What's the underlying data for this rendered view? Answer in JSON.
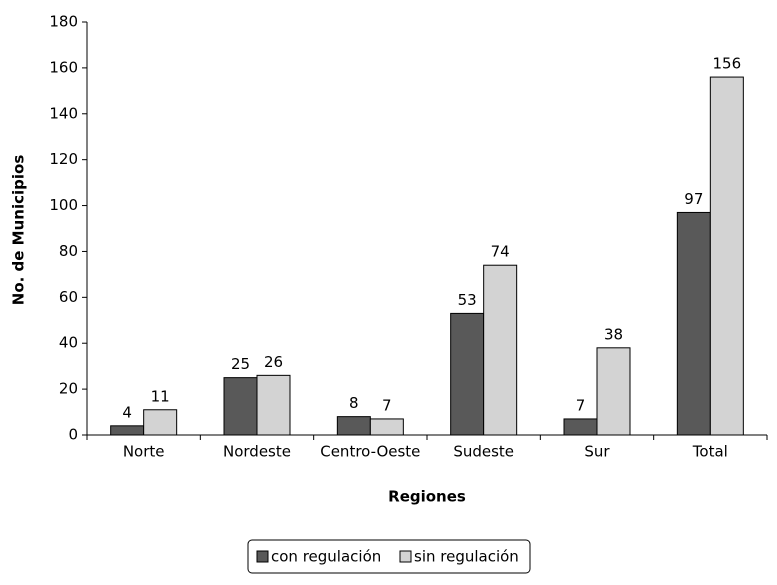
{
  "chart_data": {
    "type": "bar",
    "x_label": "Regiones",
    "y_label": "No. de Municipios",
    "categories": [
      "Norte",
      "Nordeste",
      "Centro-Oeste",
      "Sudeste",
      "Sur",
      "Total"
    ],
    "series": [
      {
        "name": "con regulación",
        "color": "#595959",
        "values": [
          4,
          25,
          8,
          53,
          7,
          97
        ]
      },
      {
        "name": "sin regulación",
        "color": "#d3d3d3",
        "values": [
          11,
          26,
          7,
          74,
          38,
          156
        ]
      }
    ],
    "ylim": [
      0,
      180
    ],
    "yticks": [
      0,
      20,
      40,
      60,
      80,
      100,
      120,
      140,
      160,
      180
    ],
    "legend": "bottom"
  }
}
